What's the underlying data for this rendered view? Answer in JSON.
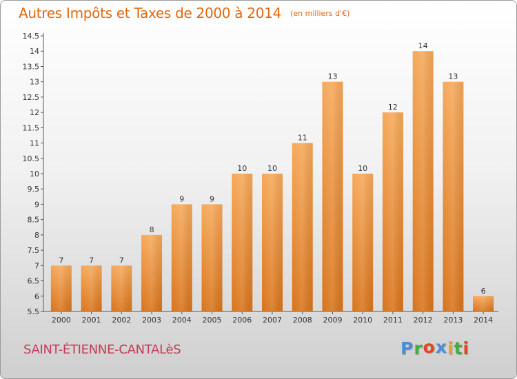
{
  "header": {
    "title": "Autres Impôts et Taxes de 2000 à 2014",
    "subtitle": "(en milliers d'€)"
  },
  "commune": "SAINT-ÉTIENNE-CANTALèS",
  "logo": {
    "text": "Proxiti",
    "letters": [
      "P",
      "r",
      "o",
      "x",
      "i",
      "t",
      "i"
    ],
    "colors": [
      "#4a8fd6",
      "#3fae3f",
      "#e3461f",
      "#4a8fd6",
      "#f0a020",
      "#3fae3f",
      "#e3461f"
    ]
  },
  "colors": {
    "bar_top": "#f6a95a",
    "bar_bottom": "#d9741b",
    "axis": "#555555"
  },
  "chart_data": {
    "type": "bar",
    "title": "Autres Impôts et Taxes de 2000 à 2014",
    "subtitle": "(en milliers d'€)",
    "categories": [
      "2000",
      "2001",
      "2002",
      "2003",
      "2004",
      "2005",
      "2006",
      "2007",
      "2008",
      "2009",
      "2010",
      "2011",
      "2012",
      "2013",
      "2014"
    ],
    "values": [
      7,
      7,
      7,
      8,
      9,
      9,
      10,
      10,
      11,
      13,
      10,
      12,
      14,
      13,
      6
    ],
    "ylim": [
      5.5,
      14.5
    ],
    "yticks": [
      "5.5",
      "6",
      "6.5",
      "7",
      "7.5",
      "8",
      "8.5",
      "9",
      "9.5",
      "10",
      "10.5",
      "11",
      "11.5",
      "12",
      "12.5",
      "13",
      "13.5",
      "14",
      "14.5"
    ],
    "xlabel": "",
    "ylabel": "",
    "grid": false
  }
}
